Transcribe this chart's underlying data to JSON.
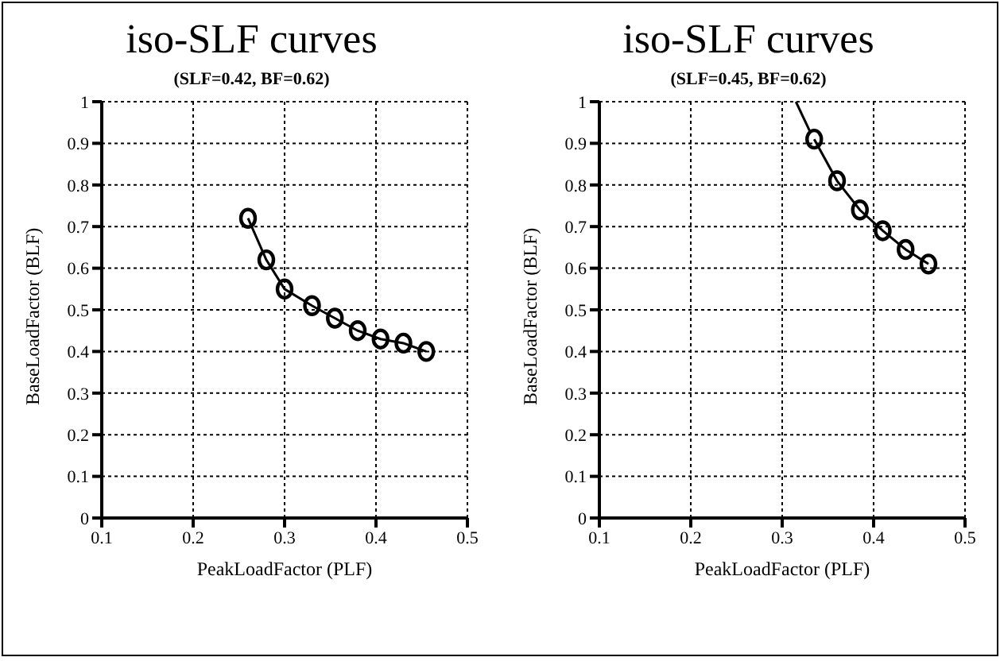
{
  "chart_data": [
    {
      "type": "line",
      "title": "iso-SLF curves",
      "subtitle": "(SLF=0.42, BF=0.62)",
      "xlabel": "PeakLoadFactor (PLF)",
      "ylabel": "BaseLoadFactor (BLF)",
      "xlim": [
        0.1,
        0.5
      ],
      "xticks": [
        0.1,
        0.2,
        0.3,
        0.4,
        0.5
      ],
      "ylim": [
        0,
        1
      ],
      "yticks": [
        0,
        0.1,
        0.2,
        0.3,
        0.4,
        0.5,
        0.6,
        0.7,
        0.8,
        0.9,
        1
      ],
      "grid": true,
      "series": [
        {
          "color": "#000000",
          "marker": "circle",
          "x": [
            0.26,
            0.28,
            0.3,
            0.33,
            0.355,
            0.38,
            0.405,
            0.43,
            0.455
          ],
          "values": [
            0.72,
            0.62,
            0.55,
            0.51,
            0.48,
            0.45,
            0.43,
            0.42,
            0.4
          ]
        }
      ]
    },
    {
      "type": "line",
      "title": "iso-SLF curves",
      "subtitle": "(SLF=0.45, BF=0.62)",
      "xlabel": "PeakLoadFactor (PLF)",
      "ylabel": "BaseLoadFactor (BLF)",
      "xlim": [
        0.1,
        0.5
      ],
      "xticks": [
        0.1,
        0.2,
        0.3,
        0.4,
        0.5
      ],
      "ylim": [
        0,
        1
      ],
      "yticks": [
        0,
        0.1,
        0.2,
        0.3,
        0.4,
        0.5,
        0.6,
        0.7,
        0.8,
        0.9,
        1
      ],
      "grid": true,
      "series": [
        {
          "color": "#000000",
          "marker": "none",
          "x": [
            0.315,
            0.33
          ],
          "values": [
            1.0,
            0.93
          ]
        },
        {
          "color": "#000000",
          "marker": "circle",
          "x": [
            0.335,
            0.36,
            0.385,
            0.41,
            0.435,
            0.46
          ],
          "values": [
            0.91,
            0.81,
            0.74,
            0.69,
            0.645,
            0.61
          ]
        }
      ]
    }
  ]
}
